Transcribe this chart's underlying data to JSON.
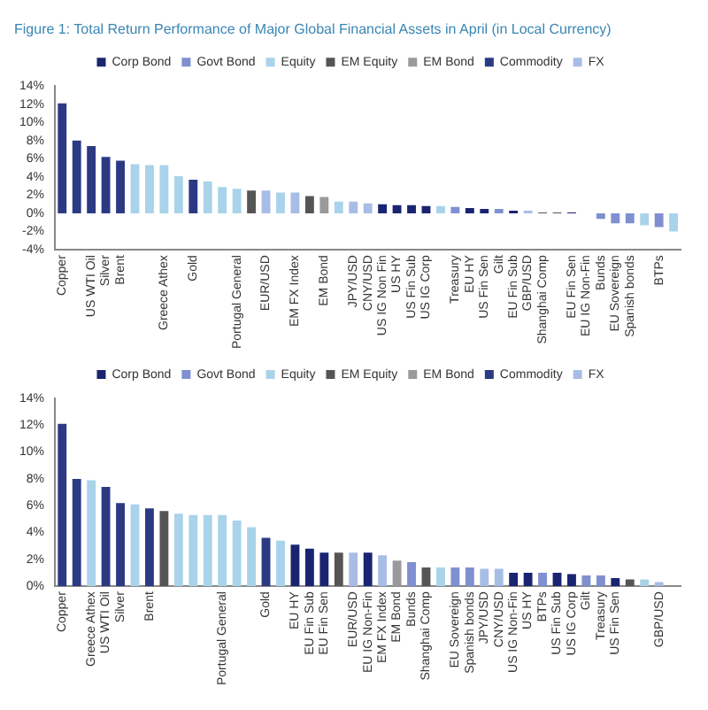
{
  "chart_data": [
    {
      "type": "bar",
      "title": "Figure 1: Total Return Performance of Major Global Financial Assets in April (in Local Currency)",
      "categories": [
        "Copper",
        null,
        "US WTI Oil",
        "Silver",
        "Brent",
        null,
        null,
        "Greece Athex",
        null,
        "Gold",
        null,
        null,
        "Portugal General",
        null,
        "EUR/USD",
        null,
        "EM FX Index",
        null,
        "EM Bond",
        null,
        "JPY/USD",
        "CNY/USD",
        "US IG Non Fin",
        "US HY",
        "US Fin Sub",
        "US IG Corp",
        null,
        "Treasury",
        "EU HY",
        "US Fin Sen",
        "Gilt",
        "EU Fin Sub",
        "GBP/USD",
        "Shanghai Comp",
        null,
        "EU Fin Sen",
        "EU IG Non-Fin",
        "Bunds",
        "EU Sovereign",
        "Spanish bonds",
        null,
        "BTPs",
        null
      ],
      "series": [
        {
          "name": "Corp Bond",
          "color": "#1a2470",
          "values": [
            null,
            null,
            null,
            null,
            null,
            null,
            null,
            null,
            null,
            null,
            null,
            null,
            null,
            null,
            null,
            null,
            null,
            null,
            null,
            null,
            null,
            null,
            1.0,
            0.9,
            0.9,
            0.8,
            null,
            null,
            0.6,
            0.5,
            null,
            0.3,
            null,
            null,
            null,
            0.1,
            0.0,
            null,
            null,
            null,
            null,
            null,
            null
          ]
        },
        {
          "name": "Govt Bond",
          "color": "#7f8fcf",
          "values": [
            null,
            null,
            null,
            null,
            null,
            null,
            null,
            null,
            null,
            null,
            null,
            null,
            null,
            null,
            null,
            null,
            null,
            null,
            null,
            null,
            null,
            null,
            null,
            null,
            null,
            null,
            null,
            0.7,
            null,
            null,
            0.5,
            null,
            null,
            null,
            null,
            null,
            null,
            -0.6,
            -1.1,
            -1.1,
            null,
            -1.5,
            null
          ]
        },
        {
          "name": "Equity",
          "color": "#a9d3ea",
          "values": [
            null,
            null,
            null,
            null,
            null,
            5.4,
            5.3,
            5.3,
            4.1,
            null,
            3.5,
            2.9,
            2.7,
            null,
            null,
            2.3,
            null,
            null,
            null,
            1.3,
            null,
            null,
            null,
            null,
            null,
            null,
            0.8,
            null,
            null,
            null,
            null,
            null,
            null,
            null,
            null,
            null,
            null,
            null,
            null,
            null,
            -1.3,
            null,
            -2.0
          ]
        },
        {
          "name": "EM Equity",
          "color": "#555555",
          "values": [
            null,
            null,
            null,
            null,
            null,
            null,
            null,
            null,
            null,
            null,
            null,
            null,
            null,
            2.5,
            null,
            null,
            null,
            1.9,
            null,
            null,
            null,
            null,
            null,
            null,
            null,
            null,
            null,
            null,
            null,
            null,
            null,
            null,
            null,
            0.1,
            0.1,
            null,
            null,
            null,
            null,
            null,
            null,
            null,
            null
          ]
        },
        {
          "name": "EM Bond",
          "color": "#9a9a9a",
          "values": [
            null,
            null,
            null,
            null,
            null,
            null,
            null,
            null,
            null,
            null,
            null,
            null,
            null,
            null,
            null,
            null,
            null,
            null,
            1.8,
            null,
            null,
            null,
            null,
            null,
            null,
            null,
            null,
            null,
            null,
            null,
            null,
            null,
            null,
            null,
            null,
            null,
            null,
            null,
            null,
            null,
            null,
            null,
            null
          ]
        },
        {
          "name": "Commodity",
          "color": "#2c3a84",
          "values": [
            12.1,
            8.0,
            7.4,
            6.2,
            5.8,
            null,
            null,
            null,
            null,
            3.7,
            null,
            null,
            null,
            null,
            null,
            null,
            null,
            null,
            null,
            null,
            null,
            null,
            null,
            null,
            null,
            null,
            null,
            null,
            null,
            null,
            null,
            null,
            null,
            null,
            null,
            null,
            null,
            null,
            null,
            null,
            null,
            null,
            null
          ]
        },
        {
          "name": "FX",
          "color": "#a8bde6",
          "values": [
            null,
            null,
            null,
            null,
            null,
            null,
            null,
            null,
            null,
            null,
            null,
            null,
            null,
            null,
            2.5,
            null,
            2.3,
            null,
            null,
            null,
            1.3,
            1.1,
            null,
            null,
            null,
            null,
            null,
            null,
            null,
            null,
            null,
            null,
            0.3,
            null,
            null,
            null,
            null,
            null,
            null,
            null,
            null,
            null,
            null
          ]
        }
      ],
      "ylim": [
        -4,
        14
      ],
      "yticks": [
        {
          "value": -4,
          "label": "-4%"
        },
        {
          "value": -2,
          "label": "-2%"
        },
        {
          "value": 0,
          "label": "0%"
        },
        {
          "value": 2,
          "label": "2%"
        },
        {
          "value": 4,
          "label": "4%"
        },
        {
          "value": 6,
          "label": "6%"
        },
        {
          "value": 8,
          "label": "8%"
        },
        {
          "value": 10,
          "label": "10%"
        },
        {
          "value": 12,
          "label": "12%"
        },
        {
          "value": 14,
          "label": "14%"
        }
      ],
      "legend": "top"
    },
    {
      "type": "bar",
      "categories": [
        "Copper",
        null,
        "Greece Athex",
        "US WTI Oil",
        "Silver",
        null,
        "Brent",
        null,
        null,
        null,
        null,
        "Portugal General",
        null,
        null,
        "Gold",
        null,
        "EU HY",
        "EU Fin Sub",
        "EU Fin Sen",
        null,
        "EUR/USD",
        "EU IG Non-Fin",
        "EM FX Index",
        "EM Bond",
        "Bunds",
        "Shanghai Comp",
        null,
        "EU Sovereign",
        "Spanish bonds",
        "JPY/USD",
        "CNY/USD",
        "US IG Non-Fin",
        "US HY",
        "BTPs",
        "US Fin Sub",
        "US IG Corp",
        "Gilt",
        "Treasury",
        "US Fin Sen",
        null,
        null,
        "GBP/USD",
        null
      ],
      "series": [
        {
          "name": "Corp Bond",
          "color": "#1a2470",
          "values": [
            null,
            null,
            null,
            null,
            null,
            null,
            null,
            null,
            null,
            null,
            null,
            null,
            null,
            null,
            null,
            null,
            3.1,
            2.8,
            2.5,
            null,
            null,
            2.5,
            null,
            null,
            null,
            null,
            null,
            null,
            null,
            null,
            null,
            1.0,
            1.0,
            null,
            1.0,
            0.9,
            null,
            null,
            0.6,
            null,
            null,
            null,
            null
          ]
        },
        {
          "name": "Govt Bond",
          "color": "#7f8fcf",
          "values": [
            null,
            null,
            null,
            null,
            null,
            null,
            null,
            null,
            null,
            null,
            null,
            null,
            null,
            null,
            null,
            null,
            null,
            null,
            null,
            null,
            null,
            null,
            null,
            null,
            1.8,
            null,
            null,
            1.4,
            1.4,
            null,
            null,
            null,
            null,
            1.0,
            null,
            null,
            0.8,
            0.8,
            null,
            null,
            null,
            null,
            null
          ]
        },
        {
          "name": "Equity",
          "color": "#a9d3ea",
          "values": [
            null,
            null,
            7.9,
            null,
            null,
            6.1,
            null,
            null,
            5.4,
            5.3,
            5.3,
            5.3,
            4.9,
            4.4,
            null,
            3.4,
            null,
            null,
            null,
            null,
            null,
            null,
            null,
            null,
            null,
            null,
            1.4,
            null,
            null,
            null,
            null,
            null,
            null,
            null,
            null,
            null,
            null,
            null,
            null,
            null,
            0.5,
            null,
            0.0
          ]
        },
        {
          "name": "EM Equity",
          "color": "#555555",
          "values": [
            null,
            null,
            null,
            null,
            null,
            null,
            null,
            5.6,
            null,
            null,
            null,
            null,
            null,
            null,
            null,
            null,
            null,
            null,
            null,
            2.5,
            null,
            null,
            null,
            null,
            null,
            1.4,
            null,
            null,
            null,
            null,
            null,
            null,
            null,
            null,
            null,
            null,
            null,
            null,
            null,
            0.5,
            null,
            null,
            null
          ]
        },
        {
          "name": "EM Bond",
          "color": "#9a9a9a",
          "values": [
            null,
            null,
            null,
            null,
            null,
            null,
            null,
            null,
            null,
            null,
            null,
            null,
            null,
            null,
            null,
            null,
            null,
            null,
            null,
            null,
            null,
            null,
            null,
            1.9,
            null,
            null,
            null,
            null,
            null,
            null,
            null,
            null,
            null,
            null,
            null,
            null,
            null,
            null,
            null,
            null,
            null,
            null,
            null
          ]
        },
        {
          "name": "Commodity",
          "color": "#2c3a84",
          "values": [
            12.1,
            8.0,
            null,
            7.4,
            6.2,
            null,
            5.8,
            null,
            null,
            null,
            null,
            null,
            null,
            null,
            3.6,
            null,
            null,
            null,
            null,
            null,
            null,
            null,
            null,
            null,
            null,
            null,
            null,
            null,
            null,
            null,
            null,
            null,
            null,
            null,
            null,
            null,
            null,
            null,
            null,
            null,
            null,
            null,
            null
          ]
        },
        {
          "name": "FX",
          "color": "#a8bde6",
          "values": [
            null,
            null,
            null,
            null,
            null,
            null,
            null,
            null,
            null,
            null,
            null,
            null,
            null,
            null,
            null,
            null,
            null,
            null,
            null,
            null,
            2.5,
            null,
            2.3,
            null,
            null,
            null,
            null,
            null,
            null,
            1.3,
            1.3,
            null,
            null,
            null,
            null,
            null,
            null,
            null,
            null,
            null,
            null,
            0.3,
            null
          ]
        }
      ],
      "ylim": [
        0,
        14
      ],
      "yticks": [
        {
          "value": 0,
          "label": "0%"
        },
        {
          "value": 2,
          "label": "2%"
        },
        {
          "value": 4,
          "label": "4%"
        },
        {
          "value": 6,
          "label": "6%"
        },
        {
          "value": 8,
          "label": "8%"
        },
        {
          "value": 10,
          "label": "10%"
        },
        {
          "value": 12,
          "label": "12%"
        },
        {
          "value": 14,
          "label": "14%"
        }
      ],
      "legend": "top"
    }
  ]
}
